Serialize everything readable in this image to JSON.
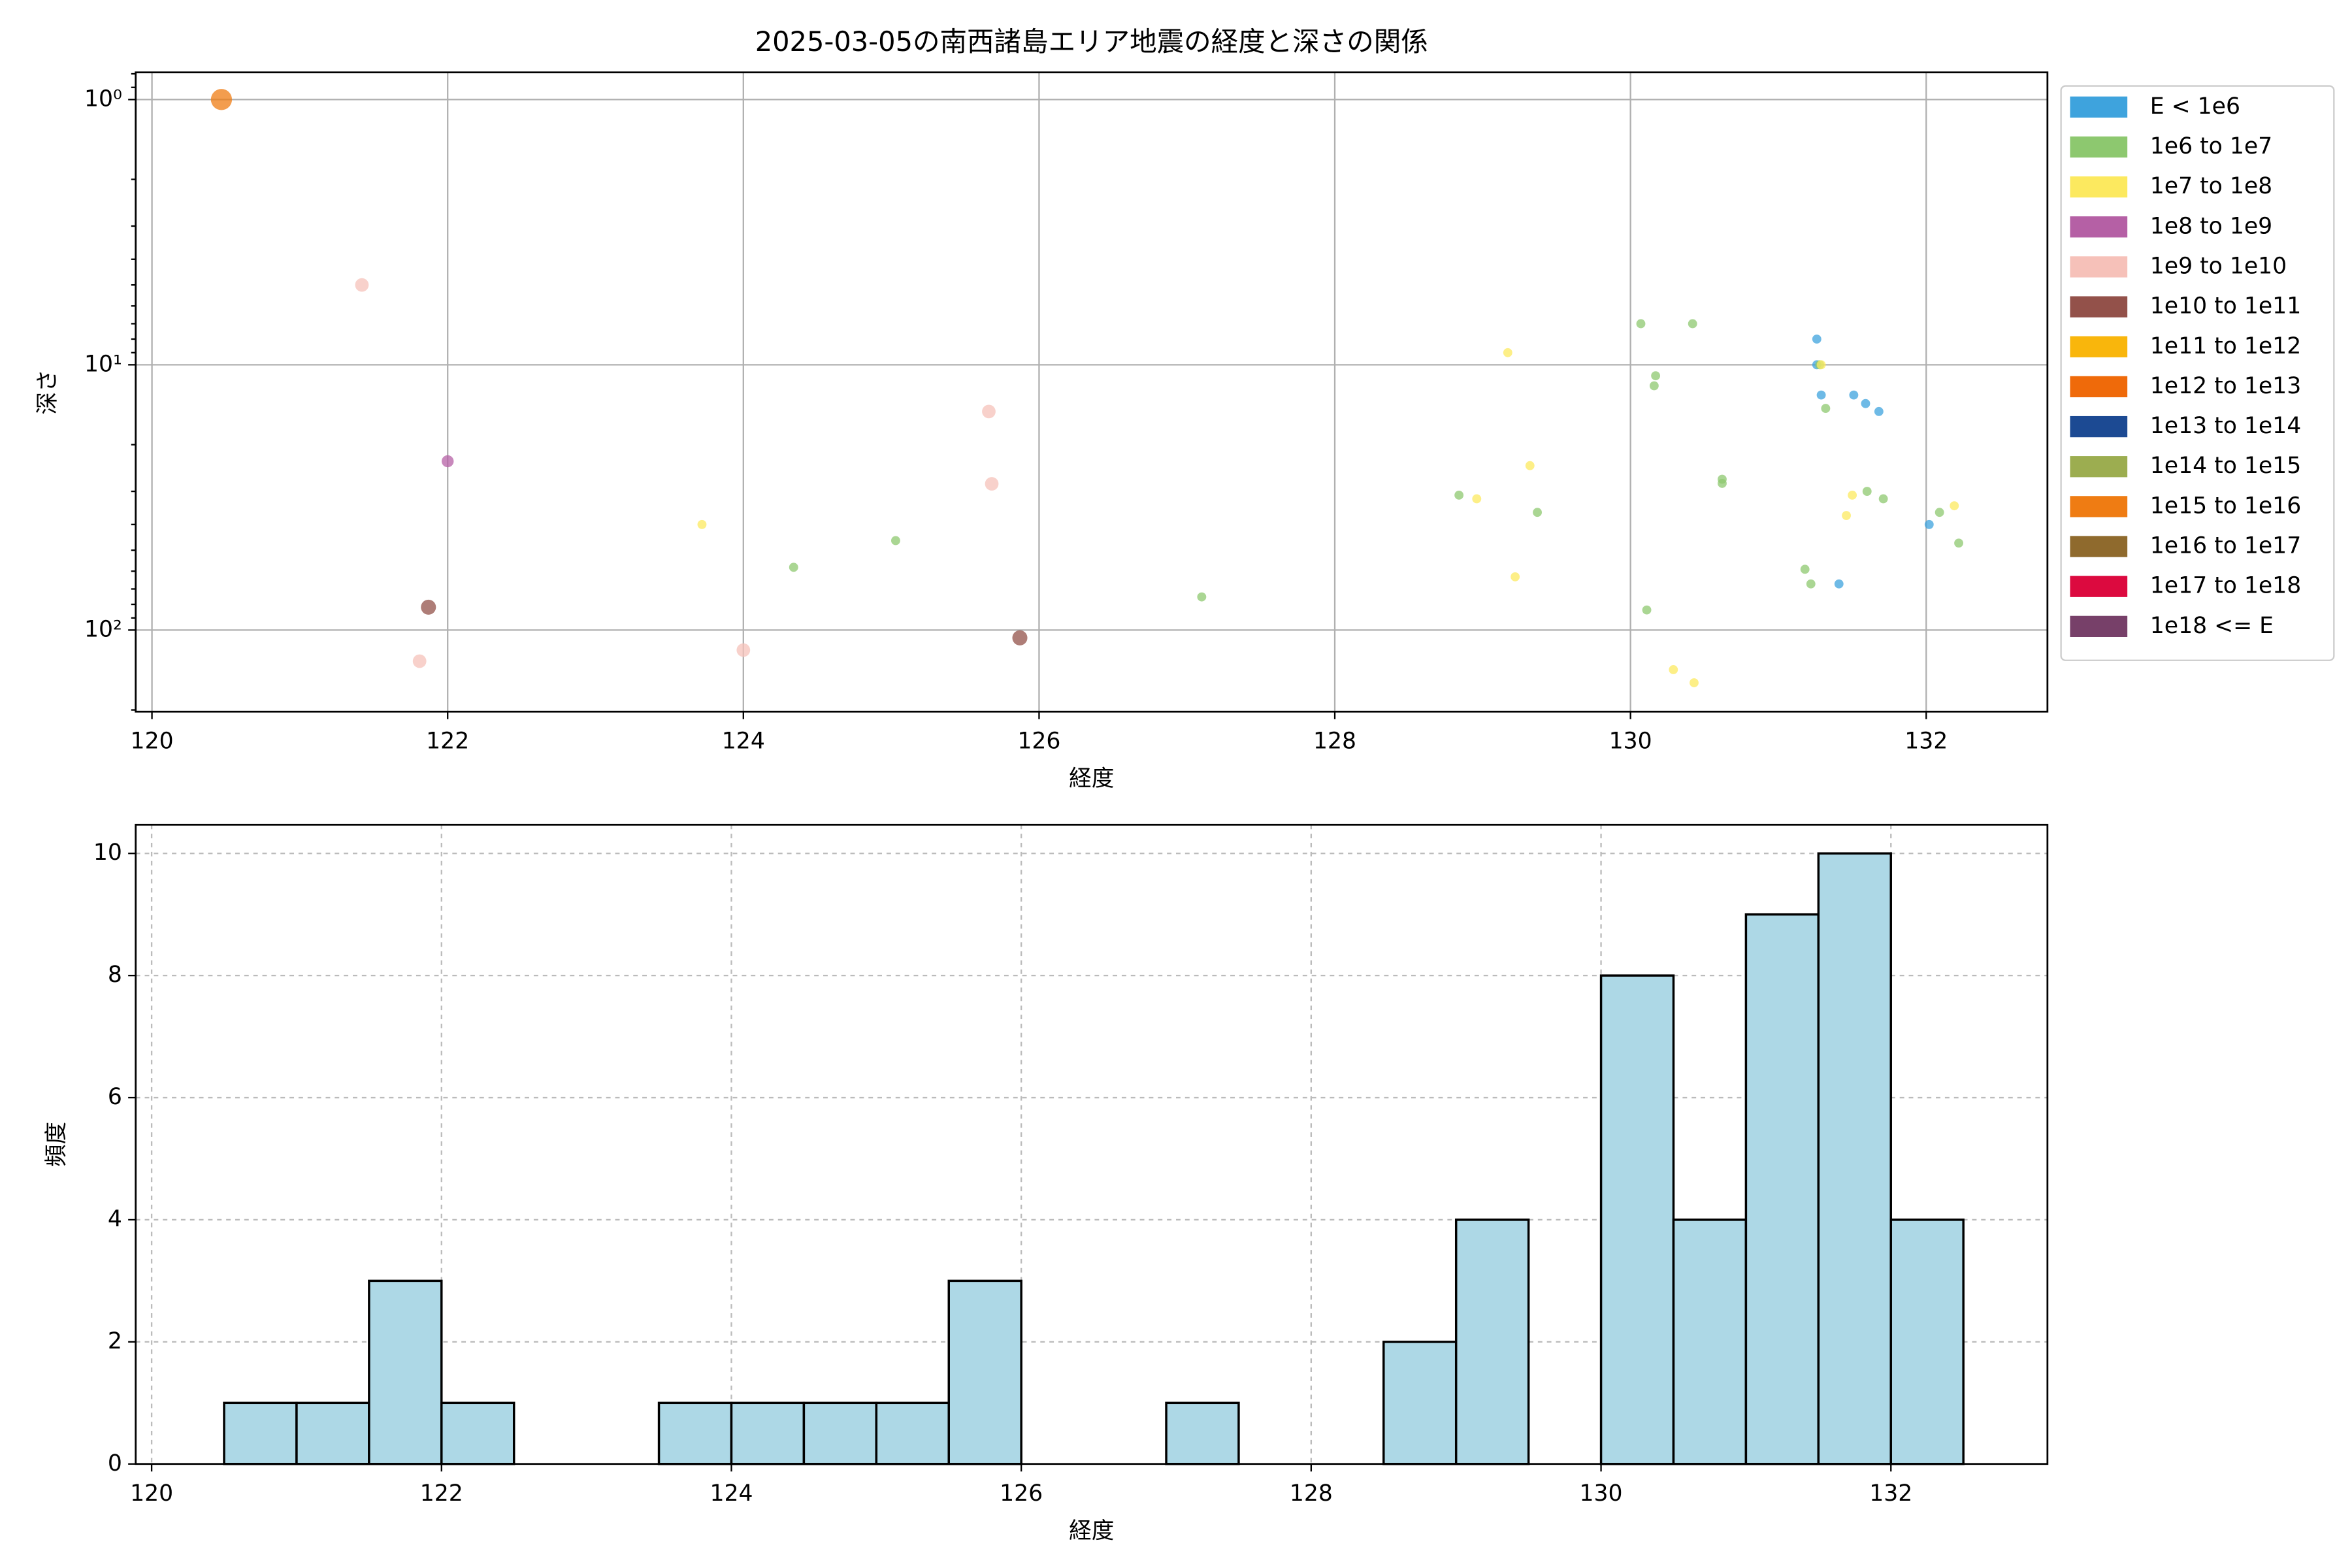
{
  "chart_data": [
    {
      "type": "scatter",
      "title": "2025-03-05の南西諸島エリア地震の経度と深さの関係",
      "xlabel": "経度",
      "ylabel": "深さ",
      "xlim": [
        119.89,
        132.82
      ],
      "xticks": [
        120,
        122,
        124,
        126,
        128,
        130,
        132
      ],
      "ylim": [
        0.79,
        203
      ],
      "log_y": true,
      "invert_y": true,
      "yticks": [
        {
          "value": 1,
          "label": "10⁰"
        },
        {
          "value": 10,
          "label": "10¹"
        },
        {
          "value": 100,
          "label": "10²"
        }
      ],
      "grid": true,
      "legend": "right",
      "series": [
        {
          "name": "E < 1e6",
          "color": "#3ea3dd",
          "marker_size": 3,
          "x": [
            131.26,
            131.26,
            131.29,
            131.51,
            131.59,
            131.68,
            132.02,
            131.41
          ],
          "values": [
            8,
            10,
            13,
            13,
            14,
            15,
            40,
            67
          ]
        },
        {
          "name": "1e6 to 1e7",
          "color": "#8dc86f",
          "marker_size": 3,
          "x": [
            124.34,
            125.03,
            127.1,
            128.84,
            129.37,
            130.07,
            130.42,
            130.17,
            130.16,
            130.62,
            130.62,
            130.11,
            131.18,
            131.22,
            131.32,
            131.6,
            131.71,
            132.09,
            132.22,
            131.28
          ],
          "values": [
            58,
            46,
            75,
            31,
            36,
            7,
            7,
            11,
            12,
            27,
            28,
            84,
            59,
            67,
            14.6,
            30,
            32,
            36,
            47,
            10
          ]
        },
        {
          "name": "1e7 to 1e8",
          "color": "#fce95f",
          "marker_size": 3,
          "x": [
            123.72,
            129.17,
            129.32,
            128.96,
            129.22,
            130.29,
            130.43,
            131.5,
            131.46,
            132.19,
            131.29
          ],
          "values": [
            40,
            9,
            24,
            32,
            63,
            141,
            158,
            31,
            37,
            34,
            10
          ]
        },
        {
          "name": "1e8 to 1e9",
          "color": "#b560a5",
          "marker_size": 4,
          "x": [
            122.0
          ],
          "values": [
            23.1
          ]
        },
        {
          "name": "1e9 to 1e10",
          "color": "#f6c1b9",
          "marker_size": 4.5,
          "x": [
            121.42,
            125.66,
            125.68,
            121.81,
            124.0
          ],
          "values": [
            5,
            15,
            28.1,
            131,
            119
          ]
        },
        {
          "name": "1e10 to 1e11",
          "color": "#93514a",
          "marker_size": 5,
          "x": [
            121.87,
            125.87
          ],
          "values": [
            82,
            107
          ]
        },
        {
          "name": "1e11 to 1e12",
          "color": "#f9b60c",
          "marker_size": 5,
          "x": [],
          "values": []
        },
        {
          "name": "1e12 to 1e13",
          "color": "#ef6a0a",
          "marker_size": 6,
          "x": [],
          "values": []
        },
        {
          "name": "1e13 to 1e14",
          "color": "#1c4a93",
          "marker_size": 6,
          "x": [],
          "values": []
        },
        {
          "name": "1e14 to 1e15",
          "color": "#9cad50",
          "marker_size": 6,
          "x": [],
          "values": []
        },
        {
          "name": "1e15 to 1e16",
          "color": "#ef7c13",
          "marker_size": 7,
          "x": [
            120.47
          ],
          "values": [
            1.0
          ]
        },
        {
          "name": "1e16 to 1e17",
          "color": "#8f6a2d",
          "marker_size": 7,
          "x": [],
          "values": []
        },
        {
          "name": "1e17 to 1e18",
          "color": "#dc0a3f",
          "marker_size": 7,
          "x": [],
          "values": []
        },
        {
          "name": "1e18 <= E",
          "color": "#774069",
          "marker_size": 7,
          "x": [],
          "values": []
        }
      ]
    },
    {
      "type": "histogram",
      "xlabel": "経度",
      "ylabel": "頻度",
      "color": "#add8e6",
      "edgecolor": "#000000",
      "xlim": [
        119.89,
        133.08
      ],
      "xticks": [
        120,
        122,
        124,
        126,
        128,
        130,
        132
      ],
      "ylim": [
        0,
        10.47
      ],
      "yticks": [
        0,
        2,
        4,
        6,
        8,
        10
      ],
      "grid": true,
      "bins": [
        120.5,
        121,
        121.5,
        122,
        122.5,
        123,
        123.5,
        124,
        124.5,
        125,
        125.5,
        126,
        126.5,
        127,
        127.5,
        128,
        128.5,
        129,
        129.5,
        130,
        130.5,
        131,
        131.5,
        132,
        132.5
      ],
      "values": [
        1,
        1,
        3,
        1,
        0,
        0,
        1,
        1,
        1,
        1,
        3,
        0,
        0,
        1,
        0,
        0,
        2,
        4,
        0,
        8,
        4,
        9,
        10,
        4
      ]
    }
  ]
}
